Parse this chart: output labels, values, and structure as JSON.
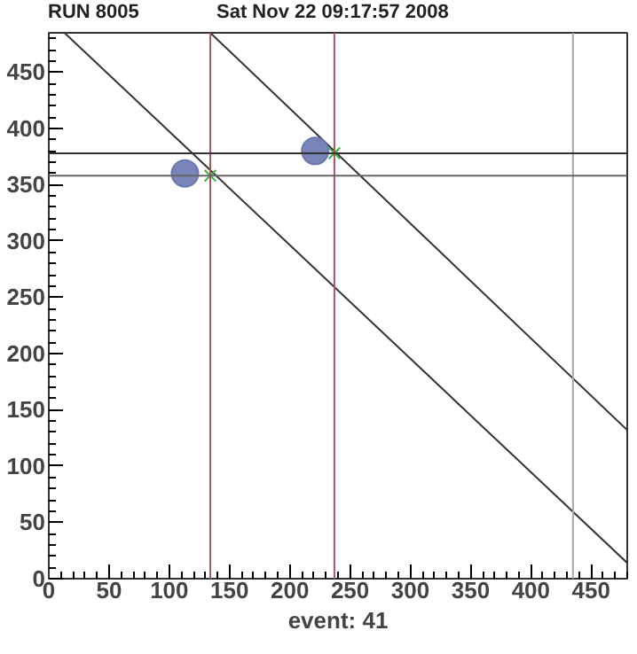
{
  "chart_data": {
    "type": "scatter",
    "title": "RUN 8005",
    "subtitle": "Sat Nov 22 09:17:57 2008",
    "xlabel": "event: 41",
    "xlim": [
      0,
      480
    ],
    "ylim": [
      0,
      485
    ],
    "xticks": [
      0,
      50,
      100,
      150,
      200,
      250,
      300,
      350,
      400,
      450
    ],
    "yticks": [
      0,
      50,
      100,
      150,
      200,
      250,
      300,
      350,
      400,
      450
    ],
    "grid": false,
    "series": [
      {
        "type": "line",
        "color": "#333333",
        "x": [
          13,
          480
        ],
        "values": [
          485,
          14
        ]
      },
      {
        "type": "line",
        "color": "#333333",
        "x": [
          134,
          480
        ],
        "values": [
          485,
          132
        ]
      },
      {
        "marker": "circle",
        "color": "#6a77b0",
        "x": [
          113,
          221
        ],
        "values": [
          360,
          380
        ]
      },
      {
        "marker": "cross",
        "color": "#3cb043",
        "x": [
          134,
          237
        ],
        "values": [
          358,
          378
        ]
      }
    ],
    "ref_lines": [
      {
        "axis": "x",
        "value": 134,
        "color": "#b05560"
      },
      {
        "axis": "x",
        "value": 237,
        "color": "#b05560"
      },
      {
        "axis": "x",
        "value": 435,
        "color": "#a8a8a8"
      },
      {
        "axis": "y",
        "value": 378,
        "color": "#333333"
      },
      {
        "axis": "y",
        "value": 358,
        "color": "#666666"
      }
    ]
  }
}
